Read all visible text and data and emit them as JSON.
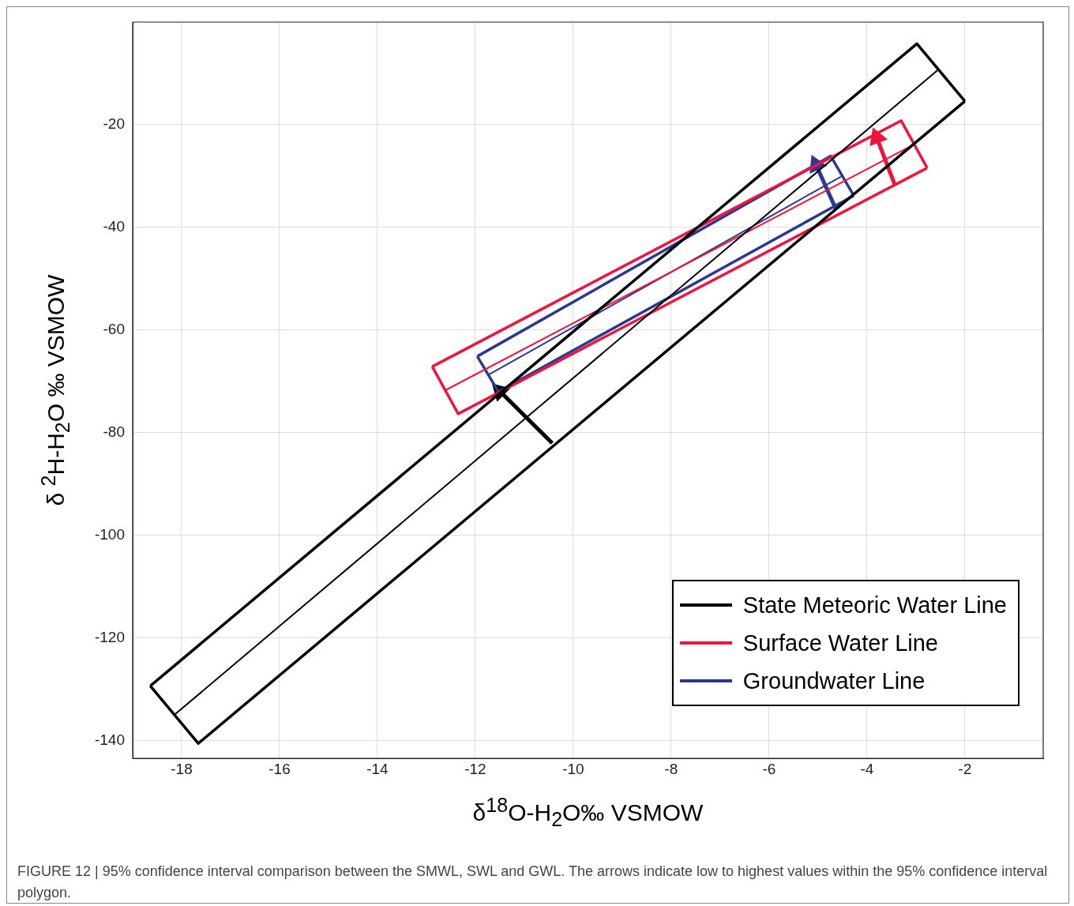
{
  "chart_data": {
    "type": "line",
    "xlabel": "δ$^{18}$O-H$_{2}$O‰  VSMOW",
    "ylabel": "δ $^{2}$H-H$_{2}$O ‰ VSMOW",
    "xlim": [
      -19,
      -0.4
    ],
    "ylim": [
      -143.4,
      0
    ],
    "xticks": [
      -18,
      -16,
      -14,
      -12,
      -10,
      -8,
      -6,
      -4,
      -2
    ],
    "yticks": [
      -140,
      -120,
      -100,
      -80,
      -60,
      -40,
      -20
    ],
    "grid": true,
    "legend": "bottom right",
    "marker": "none",
    "line_style": "solid",
    "series": [
      {
        "name": "State Meteoric Water Line",
        "color": "#000000",
        "x": [
          -18.64,
          -2.98,
          -2.0
        ],
        "values": [
          -129.3,
          -4.2,
          -15.4
        ]
      },
      {
        "color": "#000000",
        "x": [
          -18.64,
          -17.66,
          -2.0
        ],
        "values": [
          -129.3,
          -140.5,
          -15.4
        ]
      },
      {
        "color": "#000000",
        "x": [
          -18.13,
          -2.56
        ],
        "values": [
          -134.8,
          -9.4
        ]
      },
      {
        "name": "Surface Water Line",
        "color": "#f0143c",
        "x": [
          -12.88,
          -3.3,
          -2.77
        ],
        "values": [
          -67.1,
          -19.2,
          -28.4
        ]
      },
      {
        "color": "#f0143c",
        "x": [
          -12.88,
          -12.35,
          -2.77
        ],
        "values": [
          -67.1,
          -76.3,
          -28.4
        ]
      },
      {
        "color": "#f0143c",
        "x": [
          -12.61,
          -3.03
        ],
        "values": [
          -71.7,
          -23.8
        ]
      },
      {
        "name": "Groundwater Line",
        "color": "#2b3990",
        "x": [
          -11.96,
          -4.74,
          -4.27
        ],
        "values": [
          -65.1,
          -26.1,
          -33.8
        ]
      },
      {
        "color": "#2b3990",
        "x": [
          -11.96,
          -11.53,
          -4.27
        ],
        "values": [
          -65.1,
          -72.0,
          -33.8
        ]
      },
      {
        "color": "#2b3990",
        "x": [
          -11.75,
          -4.53
        ],
        "values": [
          -68.8,
          -30.1
        ]
      },
      {
        "color": "#000000",
        "marker": "triangle",
        "x": [
          -10.43,
          -11.5
        ],
        "values": [
          -82.0,
          -71.9
        ]
      },
      {
        "color": "#f0143c",
        "marker": "triangle",
        "x": [
          -3.43,
          -3.8
        ],
        "values": [
          -31.7,
          -22.5
        ]
      },
      {
        "color": "#2b3990",
        "marker": "triangle",
        "x": [
          -4.64,
          -5.04
        ],
        "values": [
          -36.3,
          -27.8
        ]
      }
    ],
    "annotations": [
      "FIGURE 12 | 95% confidence interval comparison between the SMWL, SWL and GWL. The arrows indicate low to highest values within the 95% confidence interval polygon."
    ]
  }
}
